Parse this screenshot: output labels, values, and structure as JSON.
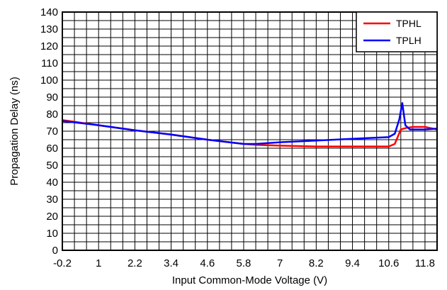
{
  "chart_data": {
    "type": "line",
    "title": "",
    "xlabel": "Input Common-Mode Voltage (V)",
    "ylabel": "Propagation Delay (ns)",
    "xlim": [
      -0.2,
      12.2
    ],
    "ylim": [
      0,
      140
    ],
    "x_tick_labels": [
      "-0.2",
      "1",
      "2.2",
      "3.4",
      "4.6",
      "5.8",
      "7",
      "8.2",
      "9.4",
      "10.6",
      "11.8"
    ],
    "x_ticks": [
      -0.2,
      1,
      2.2,
      3.4,
      4.6,
      5.8,
      7,
      8.2,
      9.4,
      10.6,
      11.8
    ],
    "y_ticks": [
      0,
      10,
      20,
      30,
      40,
      50,
      60,
      70,
      80,
      90,
      100,
      110,
      120,
      130,
      140
    ],
    "y_tick_labels": [
      "0",
      "10",
      "20",
      "30",
      "40",
      "50",
      "60",
      "70",
      "80",
      "90",
      "100",
      "110",
      "120",
      "130",
      "140"
    ],
    "grid": true,
    "legend_position": "top-right",
    "series": [
      {
        "name": "TPHL",
        "color": "#ff0000",
        "x": [
          -0.2,
          1,
          2.2,
          3.4,
          4.6,
          5.8,
          6.2,
          7,
          8.2,
          9.4,
          10.6,
          10.8,
          11.0,
          11.2,
          11.4,
          11.8,
          12.2
        ],
        "y": [
          76.5,
          73.5,
          70.5,
          68,
          65,
          62.5,
          62,
          61.5,
          61,
          61,
          61,
          62.5,
          71,
          72,
          72.5,
          72.5,
          71
        ]
      },
      {
        "name": "TPLH",
        "color": "#0000ff",
        "x": [
          -0.2,
          1,
          2.2,
          3.4,
          4.6,
          5.8,
          6.2,
          7,
          8.2,
          9.4,
          10.6,
          10.8,
          10.95,
          11.05,
          11.15,
          11.3,
          11.8,
          12.2
        ],
        "y": [
          76,
          73.5,
          70.5,
          68,
          65,
          62.5,
          62.5,
          63.5,
          64.5,
          65.5,
          66.5,
          68.5,
          77,
          86.5,
          73.5,
          71,
          71,
          71.5
        ]
      }
    ]
  }
}
